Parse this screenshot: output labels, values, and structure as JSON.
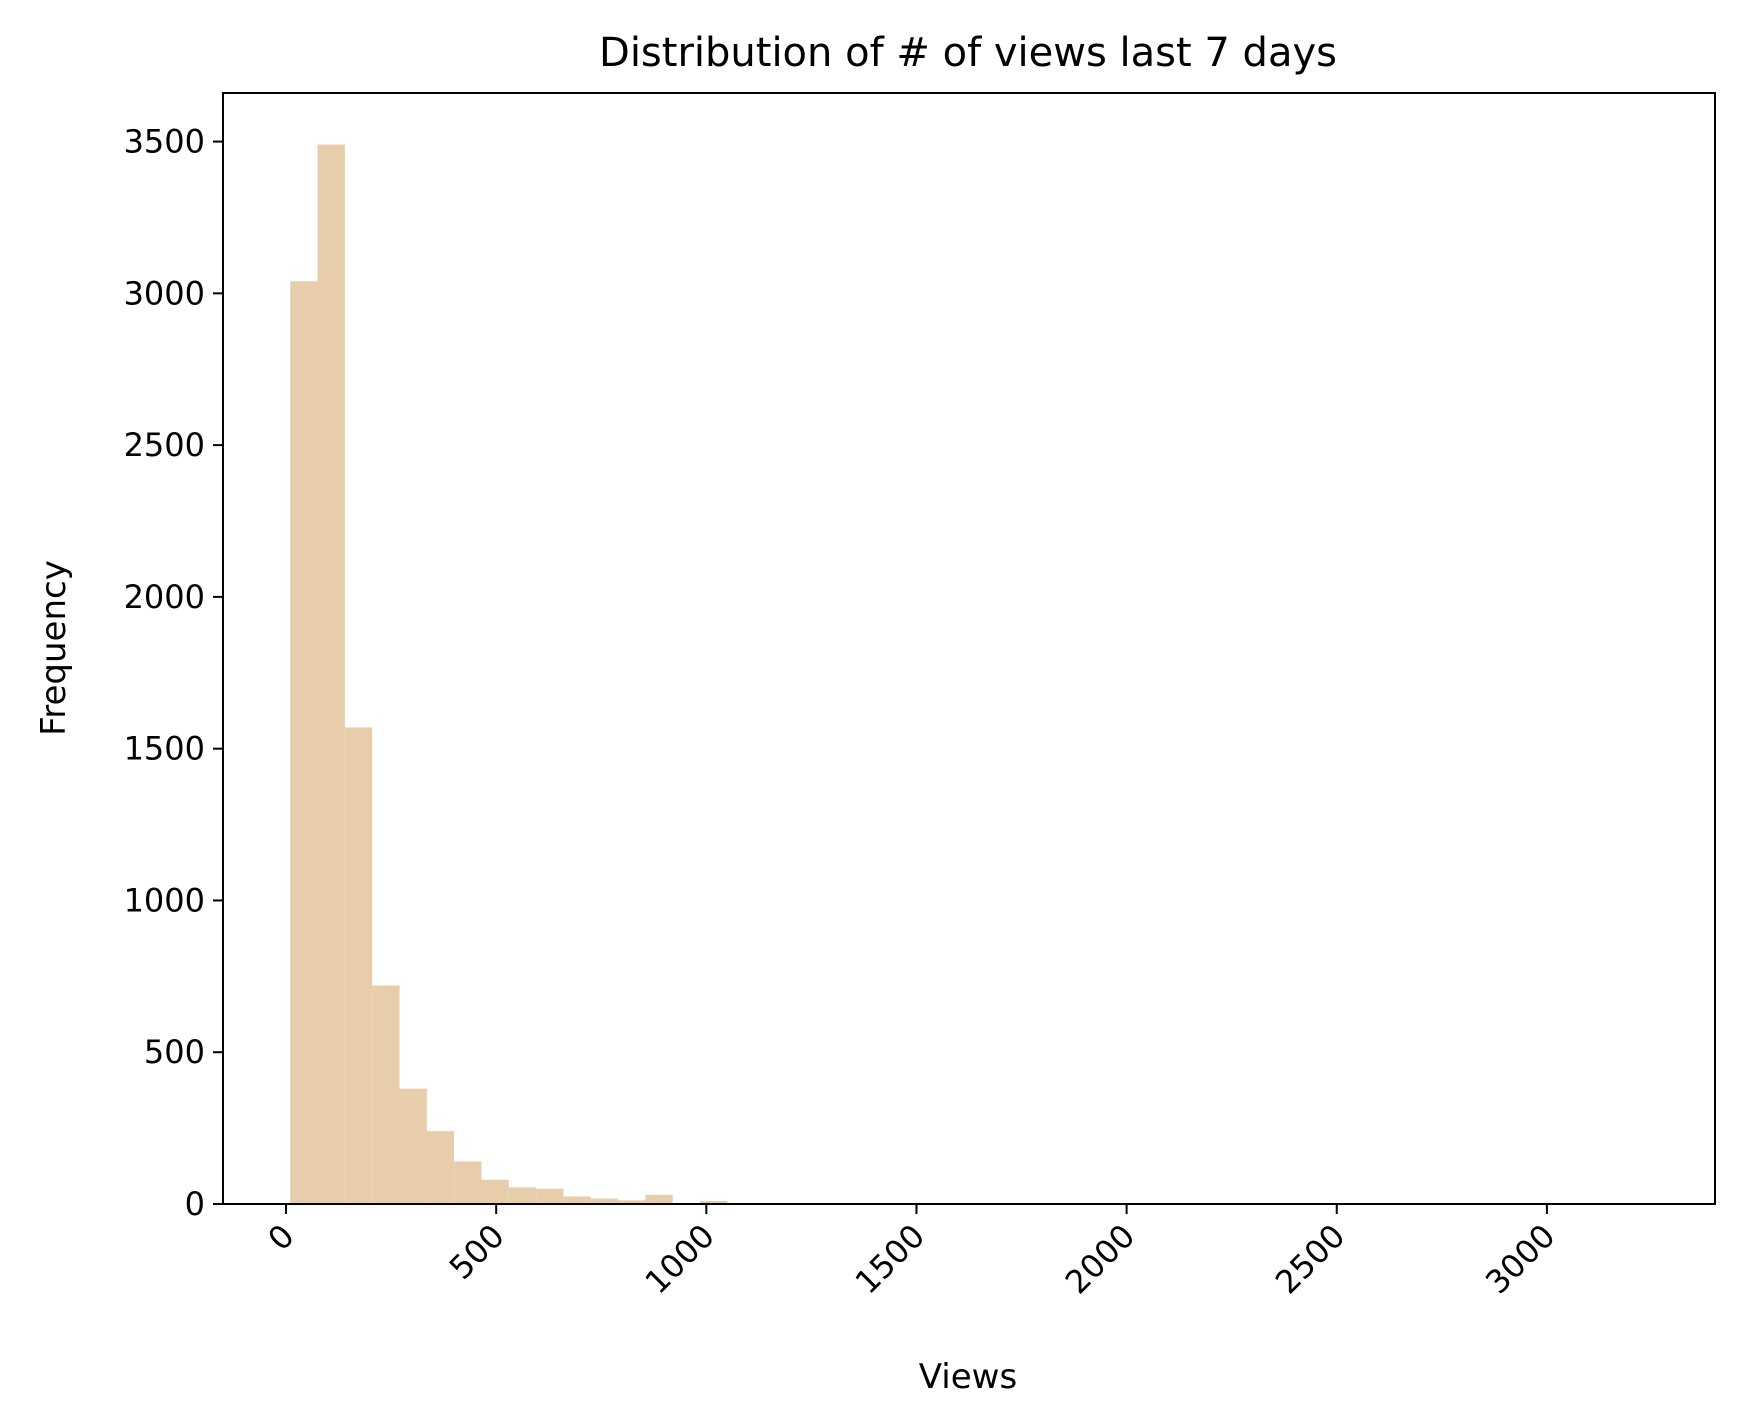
{
  "chart_data": {
    "type": "histogram",
    "title": "Distribution of # of views last 7 days",
    "xlabel": "Views",
    "ylabel": "Frequency",
    "xlim": [
      -150,
      3400
    ],
    "ylim": [
      0,
      3660
    ],
    "xticks": [
      0,
      500,
      1000,
      1500,
      2000,
      2500,
      3000
    ],
    "yticks": [
      0,
      500,
      1000,
      1500,
      2000,
      2500,
      3000,
      3500
    ],
    "bar_color": "#e8cdab",
    "bin_width": 65,
    "bins": [
      {
        "x0": 10,
        "x1": 75,
        "count": 3040
      },
      {
        "x0": 75,
        "x1": 140,
        "count": 3490
      },
      {
        "x0": 140,
        "x1": 205,
        "count": 1570
      },
      {
        "x0": 205,
        "x1": 270,
        "count": 720
      },
      {
        "x0": 270,
        "x1": 335,
        "count": 380
      },
      {
        "x0": 335,
        "x1": 400,
        "count": 240
      },
      {
        "x0": 400,
        "x1": 465,
        "count": 140
      },
      {
        "x0": 465,
        "x1": 530,
        "count": 80
      },
      {
        "x0": 530,
        "x1": 595,
        "count": 55
      },
      {
        "x0": 595,
        "x1": 660,
        "count": 50
      },
      {
        "x0": 660,
        "x1": 725,
        "count": 25
      },
      {
        "x0": 725,
        "x1": 790,
        "count": 18
      },
      {
        "x0": 790,
        "x1": 855,
        "count": 12
      },
      {
        "x0": 855,
        "x1": 920,
        "count": 30
      },
      {
        "x0": 920,
        "x1": 985,
        "count": 3
      },
      {
        "x0": 985,
        "x1": 1050,
        "count": 10
      },
      {
        "x0": 1050,
        "x1": 1115,
        "count": 3
      },
      {
        "x0": 1115,
        "x1": 1180,
        "count": 2
      },
      {
        "x0": 1180,
        "x1": 1245,
        "count": 1
      }
    ],
    "grid": false,
    "legend": "none"
  }
}
